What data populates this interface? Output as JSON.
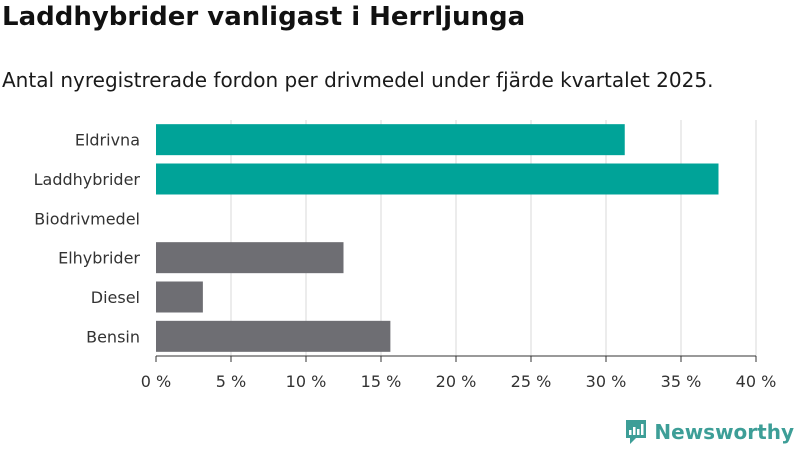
{
  "header": {
    "title": "Laddhybrider vanligast i Herrljunga",
    "subtitle": "Antal nyregistrerade fordon per drivmedel under fjärde kvartalet 2025."
  },
  "chart_data": {
    "type": "bar",
    "orientation": "horizontal",
    "title": "Laddhybrider vanligast i Herrljunga",
    "subtitle": "Antal nyregistrerade fordon per drivmedel under fjärde kvartalet 2025.",
    "categories": [
      "Eldrivna",
      "Laddhybrider",
      "Biodrivmedel",
      "Elhybrider",
      "Diesel",
      "Bensin"
    ],
    "values": [
      31.25,
      37.5,
      0,
      12.5,
      3.125,
      15.625
    ],
    "colors": [
      "#00a398",
      "#00a398",
      "#6e6e73",
      "#6e6e73",
      "#6e6e73",
      "#6e6e73"
    ],
    "xlim": [
      0,
      40
    ],
    "xticks": [
      0,
      5,
      10,
      15,
      20,
      25,
      30,
      35,
      40
    ],
    "xtick_labels": [
      "0 %",
      "5 %",
      "10 %",
      "15 %",
      "20 %",
      "25 %",
      "30 %",
      "35 %",
      "40 %"
    ],
    "xlabel": "",
    "ylabel": "",
    "grid": true,
    "unit": "%"
  },
  "branding": {
    "logo_text": "Newsworthy",
    "logo_color": "#3d9e97"
  }
}
